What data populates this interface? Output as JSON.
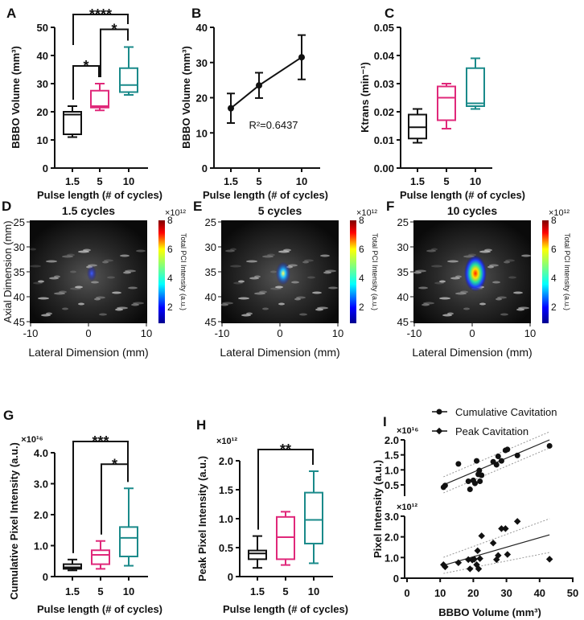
{
  "colors": {
    "c1_5": "#111111",
    "c5": "#e0287a",
    "c10": "#1a8a8a"
  },
  "chart_data": [
    {
      "panel": "A",
      "type": "box",
      "ylabel": "BBBO Volume (mm³)",
      "xlabel": "Pulse length (# of cycles)",
      "categories": [
        "1.5",
        "5",
        "10"
      ],
      "ylim": [
        0,
        50
      ],
      "yticks": [
        "0",
        "10",
        "20",
        "30",
        "40",
        "50"
      ],
      "ytick_values": [
        0,
        10,
        20,
        30,
        40,
        50
      ],
      "boxes": [
        [
          11,
          12,
          19,
          20,
          22
        ],
        [
          20.5,
          21.5,
          22,
          27.5,
          30
        ],
        [
          26,
          27,
          29.5,
          35.5,
          43
        ]
      ],
      "significance": [
        {
          "pair": [
            "1.5",
            "5"
          ],
          "label": "*"
        },
        {
          "pair": [
            "5",
            "10"
          ],
          "label": "*"
        },
        {
          "pair": [
            "1.5",
            "10"
          ],
          "label": "****"
        }
      ]
    },
    {
      "panel": "B",
      "type": "line",
      "ylabel": "BBBO Volume (mm³)",
      "xlabel": "Pulse length (# of cycles)",
      "categories": [
        "1.5",
        "5",
        "10"
      ],
      "ylim": [
        0,
        40
      ],
      "yticks": [
        "0",
        "10",
        "20",
        "30",
        "40"
      ],
      "ytick_values": [
        0,
        10,
        20,
        30,
        40
      ],
      "values": [
        17,
        23.5,
        31.5
      ],
      "errors": [
        4.2,
        3.6,
        6.3
      ],
      "annotation": "R²=0.6437"
    },
    {
      "panel": "C",
      "type": "box",
      "ylabel": "Ktrans (min⁻¹)",
      "xlabel": "Pulse length (# of cycles)",
      "categories": [
        "1.5",
        "5",
        "10"
      ],
      "ylim": [
        0,
        0.05
      ],
      "yticks": [
        "0.00",
        "0.01",
        "0.02",
        "0.03",
        "0.04",
        "0.05"
      ],
      "ytick_values": [
        0,
        0.01,
        0.02,
        0.03,
        0.04,
        0.05
      ],
      "boxes": [
        [
          0.009,
          0.0105,
          0.0145,
          0.019,
          0.021
        ],
        [
          0.014,
          0.017,
          0.025,
          0.029,
          0.03
        ],
        [
          0.021,
          0.022,
          0.023,
          0.0355,
          0.039
        ]
      ]
    },
    {
      "panel": "D",
      "type": "heatmap",
      "title": "1.5 cycles",
      "xlabel": "Lateral Dimension (mm)",
      "ylabel": "Axial Dimension (mm)",
      "xticks": [
        "-10",
        "0",
        "10"
      ],
      "yticks": [
        "25",
        "30",
        "35",
        "40",
        "45"
      ],
      "colorbar_label": "Total PCI Intensity (a.u.)",
      "colorbar_exponent": "×10¹²",
      "colorbar_ticks": [
        "2",
        "4",
        "6",
        "8"
      ],
      "peak_intensity": 2
    },
    {
      "panel": "E",
      "type": "heatmap",
      "title": "5 cycles",
      "xlabel": "Lateral Dimension (mm)",
      "ylabel": "",
      "xticks": [
        "-10",
        "0",
        "10"
      ],
      "yticks": [
        "25",
        "30",
        "35",
        "40",
        "45"
      ],
      "colorbar_label": "Total PCI Intensity (a.u.)",
      "colorbar_exponent": "×10¹²",
      "colorbar_ticks": [
        "2",
        "4",
        "6",
        "8"
      ],
      "peak_intensity": 4
    },
    {
      "panel": "F",
      "type": "heatmap",
      "title": "10 cycles",
      "xlabel": "Lateral Dimension (mm)",
      "ylabel": "",
      "xticks": [
        "-10",
        "0",
        "10"
      ],
      "yticks": [
        "25",
        "30",
        "35",
        "40",
        "45"
      ],
      "colorbar_label": "Total PCI Intensity (a.u.)",
      "colorbar_exponent": "×10¹²",
      "colorbar_ticks": [
        "2",
        "4",
        "6",
        "8"
      ],
      "peak_intensity": 8
    },
    {
      "panel": "G",
      "type": "box",
      "ylabel": "Cumulative Pixel Intensity (a.u.)",
      "xlabel": "Pulse length (# of cycles)",
      "exponent": "×10¹⁶",
      "categories": [
        "1.5",
        "5",
        "10"
      ],
      "ylim": [
        0,
        4
      ],
      "yticks": [
        "0",
        "1.0",
        "2.0",
        "3.0",
        "4.0"
      ],
      "ytick_values": [
        0,
        1,
        2,
        3,
        4
      ],
      "boxes": [
        [
          0.2,
          0.25,
          0.3,
          0.4,
          0.55
        ],
        [
          0.25,
          0.4,
          0.7,
          0.85,
          1.15
        ],
        [
          0.35,
          0.65,
          1.25,
          1.6,
          2.85
        ]
      ],
      "significance": [
        {
          "pair": [
            "5",
            "10"
          ],
          "label": "*"
        },
        {
          "pair": [
            "1.5",
            "10"
          ],
          "label": "***"
        }
      ]
    },
    {
      "panel": "H",
      "type": "box",
      "ylabel": "Peak Pixel Intensity (a.u.)",
      "xlabel": "Pulse length (# of cycles)",
      "exponent": "×10¹²",
      "categories": [
        "1.5",
        "5",
        "10"
      ],
      "ylim": [
        0,
        2
      ],
      "yticks": [
        "0",
        "0.5",
        "1.0",
        "1.5",
        "2.0"
      ],
      "ytick_values": [
        0,
        0.5,
        1,
        1.5,
        2
      ],
      "boxes": [
        [
          0.15,
          0.3,
          0.4,
          0.45,
          0.7
        ],
        [
          0.2,
          0.3,
          0.68,
          1.03,
          1.12
        ],
        [
          0.23,
          0.57,
          0.98,
          1.45,
          1.82
        ]
      ],
      "significance": [
        {
          "pair": [
            "1.5",
            "10"
          ],
          "label": "**"
        }
      ]
    },
    {
      "panel": "I",
      "type": "scatter",
      "xlabel": "BBBO Volume (mm³)",
      "ylabel": "Pixel Intensity (a.u.)",
      "xlim": [
        0,
        50
      ],
      "xticks": [
        "0",
        "10",
        "20",
        "30",
        "40",
        "50"
      ],
      "xtick_values": [
        0,
        10,
        20,
        30,
        40,
        50
      ],
      "series": [
        {
          "name": "Cumulative Cavitation",
          "marker": "circle",
          "exponent": "×10¹⁶",
          "ylim": [
            0.12,
            2.0
          ],
          "yticks": [
            "0.5",
            "1.0",
            "1.5",
            "2.0"
          ],
          "ytick_values": [
            0.5,
            1,
            1.5,
            2
          ],
          "fit": [
            [
              11,
              0.5
            ],
            [
              43,
              2.0
            ]
          ],
          "points": [
            [
              11,
              0.42
            ],
            [
              11.5,
              0.48
            ],
            [
              15.5,
              1.2
            ],
            [
              18.5,
              0.62
            ],
            [
              19,
              0.35
            ],
            [
              20,
              0.65
            ],
            [
              20.5,
              0.55
            ],
            [
              21,
              1.3
            ],
            [
              21.5,
              0.85
            ],
            [
              21.8,
              0.98
            ],
            [
              22,
              0.62
            ],
            [
              22.5,
              0.82
            ],
            [
              26,
              1.27
            ],
            [
              27,
              1.17
            ],
            [
              27.5,
              1.45
            ],
            [
              28.5,
              1.3
            ],
            [
              29.7,
              1.65
            ],
            [
              30.3,
              1.68
            ],
            [
              33.3,
              1.48
            ],
            [
              43,
              1.8
            ]
          ]
        },
        {
          "name": "Peak Cavitation",
          "marker": "diamond",
          "exponent": "×10¹²",
          "ylim": [
            0,
            3.0
          ],
          "yticks": [
            "0",
            "1.0",
            "2.0",
            "3.0"
          ],
          "ytick_values": [
            0,
            1,
            2,
            3
          ],
          "fit": [
            [
              11,
              0.62
            ],
            [
              43,
              2.1
            ]
          ],
          "points": [
            [
              11,
              0.65
            ],
            [
              11.5,
              0.55
            ],
            [
              15.5,
              0.75
            ],
            [
              18.5,
              0.9
            ],
            [
              19,
              0.45
            ],
            [
              19.7,
              0.88
            ],
            [
              20.3,
              0.92
            ],
            [
              21,
              0.65
            ],
            [
              21.3,
              1.33
            ],
            [
              21.6,
              0.45
            ],
            [
              22,
              0.95
            ],
            [
              22.5,
              2.05
            ],
            [
              26,
              1.7
            ],
            [
              27,
              0.9
            ],
            [
              27.5,
              1.1
            ],
            [
              28.5,
              2.4
            ],
            [
              29.7,
              2.4
            ],
            [
              30.3,
              1.15
            ],
            [
              33.3,
              2.75
            ],
            [
              43,
              0.92
            ]
          ]
        }
      ]
    }
  ]
}
